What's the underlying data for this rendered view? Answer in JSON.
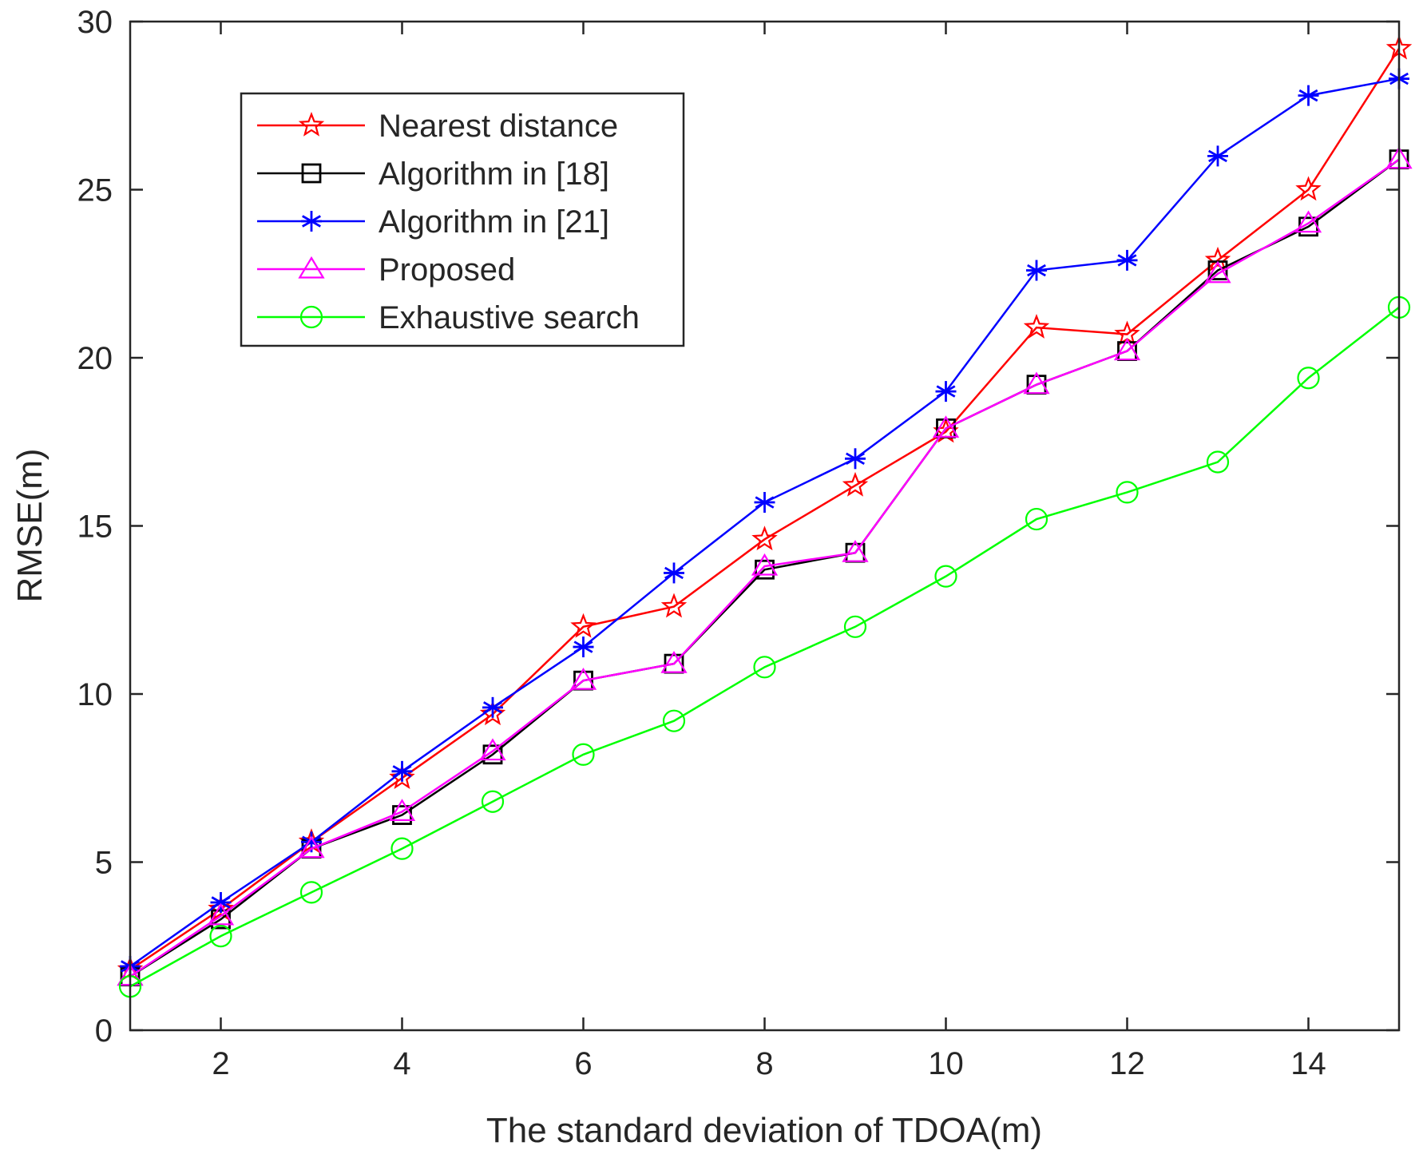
{
  "chart_data": {
    "type": "line",
    "xlabel": "The standard deviation of TDOA(m)",
    "ylabel": "RMSE(m)",
    "xlim": [
      1,
      15
    ],
    "ylim": [
      0,
      30
    ],
    "xticks": [
      2,
      4,
      6,
      8,
      10,
      12,
      14
    ],
    "yticks": [
      0,
      5,
      10,
      15,
      20,
      25,
      30
    ],
    "legend_position": "top-left",
    "x": [
      1,
      2,
      3,
      4,
      5,
      6,
      7,
      8,
      9,
      10,
      11,
      12,
      13,
      14,
      15
    ],
    "series": [
      {
        "name": "Nearest distance",
        "color": "#ff0000",
        "marker": "star",
        "values": [
          1.8,
          3.6,
          5.6,
          7.5,
          9.4,
          12.0,
          12.6,
          14.6,
          16.2,
          17.8,
          20.9,
          20.7,
          22.9,
          25.0,
          29.2
        ]
      },
      {
        "name": "Algorithm in [18]",
        "color": "#000000",
        "marker": "square",
        "values": [
          1.6,
          3.3,
          5.4,
          6.4,
          8.2,
          10.4,
          10.9,
          13.7,
          14.2,
          17.9,
          19.2,
          20.2,
          22.6,
          23.9,
          25.9
        ]
      },
      {
        "name": "Algorithm in [21]",
        "color": "#0000ff",
        "marker": "asterisk",
        "values": [
          1.9,
          3.8,
          5.6,
          7.7,
          9.6,
          11.4,
          13.6,
          15.7,
          17.0,
          19.0,
          22.6,
          22.9,
          26.0,
          27.8,
          28.3
        ]
      },
      {
        "name": "Proposed",
        "color": "#ff00ff",
        "marker": "triangle",
        "values": [
          1.6,
          3.4,
          5.4,
          6.5,
          8.3,
          10.4,
          10.9,
          13.8,
          14.2,
          17.9,
          19.2,
          20.2,
          22.5,
          24.0,
          25.9
        ]
      },
      {
        "name": "Exhaustive search",
        "color": "#00ff00",
        "marker": "circle",
        "values": [
          1.3,
          2.8,
          4.1,
          5.4,
          6.8,
          8.2,
          9.2,
          10.8,
          12.0,
          13.5,
          15.2,
          16.0,
          16.9,
          19.4,
          21.5
        ]
      }
    ]
  }
}
